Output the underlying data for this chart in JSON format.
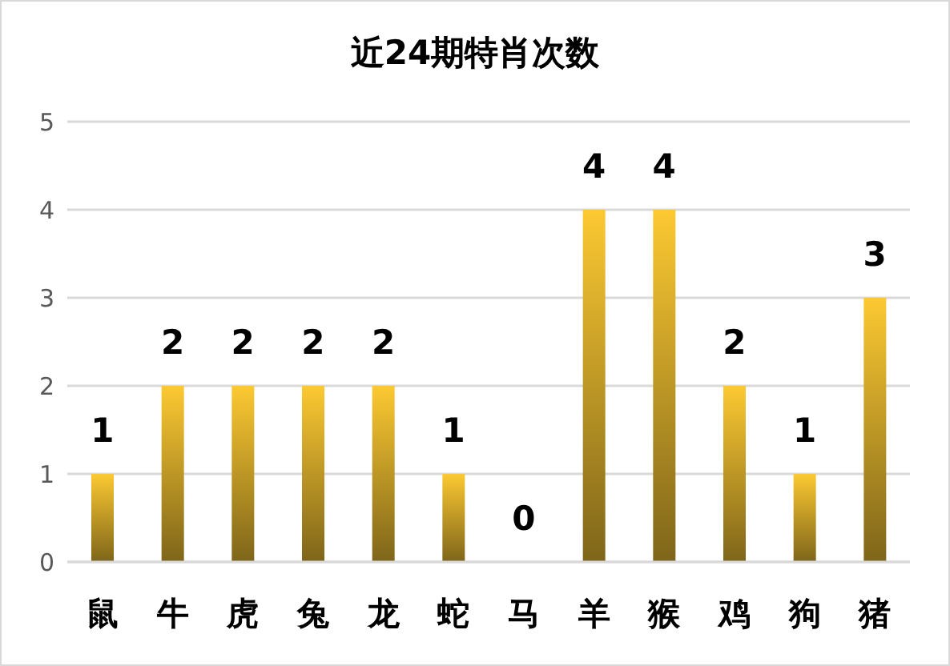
{
  "chart_data": {
    "type": "bar",
    "title": "近24期特肖次数",
    "categories": [
      "鼠",
      "牛",
      "虎",
      "兔",
      "龙",
      "蛇",
      "马",
      "羊",
      "猴",
      "鸡",
      "狗",
      "猪"
    ],
    "values": [
      1,
      2,
      2,
      2,
      2,
      1,
      0,
      4,
      4,
      2,
      1,
      3
    ],
    "color": "#fcc932",
    "ylim": [
      0,
      5
    ],
    "yticks": [
      0,
      1,
      2,
      3,
      4,
      5
    ],
    "grid": "y",
    "data_labels": true
  }
}
